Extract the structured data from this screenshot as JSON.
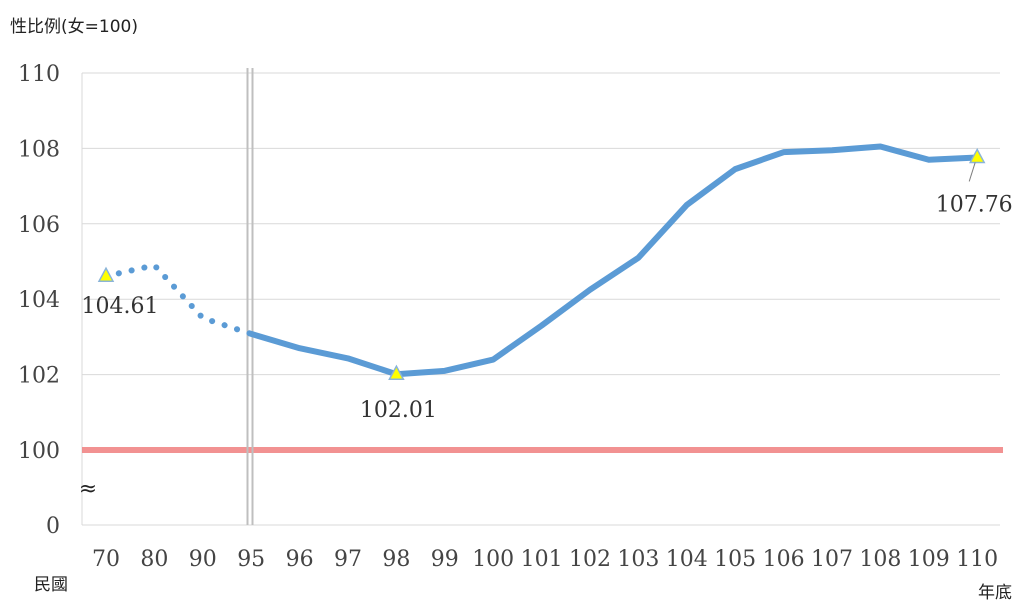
{
  "chart_data": {
    "type": "line",
    "ylabel": "性比例(女=100)",
    "xlabel_left": "民國",
    "xlabel_right": "年底",
    "axis_break_symbol": "≈",
    "categories": [
      "70",
      "80",
      "90",
      "95",
      "96",
      "97",
      "98",
      "99",
      "100",
      "101",
      "102",
      "103",
      "104",
      "105",
      "106",
      "107",
      "108",
      "109",
      "110"
    ],
    "y_ticks": [
      "0",
      "100",
      "102",
      "104",
      "106",
      "108",
      "110"
    ],
    "series": [
      {
        "style": "dotted",
        "color": "#5B9BD5",
        "points": [
          {
            "x": "70",
            "y": 104.61
          },
          {
            "x": "80",
            "y": 104.9
          },
          {
            "x": "90",
            "y": 103.5
          },
          {
            "x": "95",
            "y": 103.08
          }
        ]
      },
      {
        "style": "solid",
        "color": "#5B9BD5",
        "points": [
          {
            "x": "95",
            "y": 103.08
          },
          {
            "x": "96",
            "y": 102.7
          },
          {
            "x": "97",
            "y": 102.43
          },
          {
            "x": "98",
            "y": 102.01
          },
          {
            "x": "99",
            "y": 102.1
          },
          {
            "x": "100",
            "y": 102.4
          },
          {
            "x": "101",
            "y": 103.3
          },
          {
            "x": "102",
            "y": 104.25
          },
          {
            "x": "103",
            "y": 105.1
          },
          {
            "x": "104",
            "y": 106.5
          },
          {
            "x": "105",
            "y": 107.45
          },
          {
            "x": "106",
            "y": 107.9
          },
          {
            "x": "107",
            "y": 107.95
          },
          {
            "x": "108",
            "y": 108.05
          },
          {
            "x": "109",
            "y": 107.7
          },
          {
            "x": "110",
            "y": 107.76
          }
        ]
      }
    ],
    "reference_line": {
      "y": 100,
      "color": "#F08080"
    },
    "marked_points": [
      {
        "x": "70",
        "y": 104.61,
        "label": "104.61"
      },
      {
        "x": "98",
        "y": 102.01,
        "label": "102.01"
      },
      {
        "x": "110",
        "y": 107.76,
        "label": "107.76"
      }
    ],
    "colors": {
      "grid": "#d9d9d9",
      "marker_fill": "#FFFF00",
      "marker_stroke": "#8ab4d8",
      "break_line": "#bfbfbf"
    }
  }
}
